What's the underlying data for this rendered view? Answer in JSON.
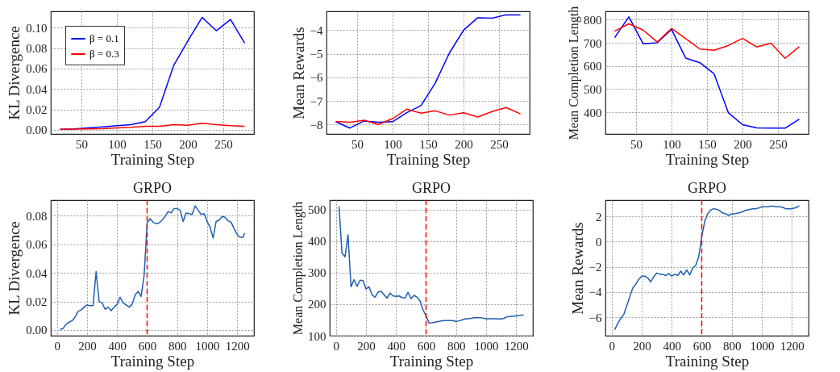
{
  "chart_data": [
    {
      "type": "line",
      "xlabel": "Training Step",
      "ylabel": "KL Divergence",
      "x": [
        20,
        40,
        60,
        80,
        100,
        120,
        140,
        160,
        180,
        200,
        220,
        240,
        260,
        280
      ],
      "xlim": [
        7,
        293
      ],
      "xticks": [
        50,
        100,
        150,
        200,
        250
      ],
      "ylim": [
        -0.004,
        0.116
      ],
      "yticks": [
        {
          "value": 0,
          "label": "0.00"
        },
        {
          "value": 0.02,
          "label": "0.02"
        },
        {
          "value": 0.04,
          "label": "0.04"
        },
        {
          "value": 0.06,
          "label": "0.06"
        },
        {
          "value": 0.08,
          "label": "0.08"
        },
        {
          "value": 0.1,
          "label": "0.10"
        }
      ],
      "grid": true,
      "legend": "top left",
      "series": [
        {
          "name": "β = 0.1",
          "color": "#0000ff",
          "values": [
            0.0005,
            0.001,
            0.002,
            0.003,
            0.004,
            0.005,
            0.008,
            0.022,
            0.063,
            0.087,
            0.11,
            0.097,
            0.108,
            0.085
          ]
        },
        {
          "name": "β = 0.3",
          "color": "#ff0000",
          "values": [
            0.0005,
            0.0008,
            0.001,
            0.0012,
            0.002,
            0.0025,
            0.0035,
            0.0035,
            0.005,
            0.0045,
            0.0065,
            0.005,
            0.004,
            0.0035
          ]
        }
      ]
    },
    {
      "type": "line",
      "xlabel": "Training Step",
      "ylabel": "Mean Rewards",
      "x": [
        20,
        40,
        60,
        80,
        100,
        120,
        140,
        160,
        180,
        200,
        220,
        240,
        260,
        280
      ],
      "xlim": [
        7,
        293
      ],
      "xticks": [
        50,
        100,
        150,
        200,
        250
      ],
      "ylim": [
        -8.4,
        -3.2
      ],
      "yticks": [
        -8,
        -7,
        -6,
        -5,
        -4
      ],
      "grid": true,
      "series": [
        {
          "color": "#0000ff",
          "values": [
            -7.88,
            -8.15,
            -7.85,
            -7.9,
            -7.88,
            -7.5,
            -7.2,
            -6.25,
            -4.97,
            -4.0,
            -3.47,
            -3.49,
            -3.35,
            -3.35
          ]
        },
        {
          "color": "#ff0000",
          "values": [
            -7.87,
            -7.9,
            -7.82,
            -8.0,
            -7.75,
            -7.35,
            -7.52,
            -7.42,
            -7.6,
            -7.5,
            -7.68,
            -7.45,
            -7.28,
            -7.55
          ]
        }
      ]
    },
    {
      "type": "line",
      "xlabel": "Training Step",
      "ylabel": "Mean Completion Length",
      "x": [
        20,
        40,
        60,
        80,
        100,
        120,
        140,
        160,
        180,
        200,
        220,
        240,
        260,
        280
      ],
      "xlim": [
        7,
        293
      ],
      "xticks": [
        50,
        100,
        150,
        200,
        250
      ],
      "ylim": [
        306,
        836
      ],
      "yticks": [
        400,
        500,
        600,
        700,
        800
      ],
      "grid": true,
      "series": [
        {
          "color": "#0000ff",
          "values": [
            722,
            812,
            696,
            700,
            758,
            634,
            614,
            566,
            398,
            346,
            332,
            331,
            331,
            370
          ]
        },
        {
          "color": "#ff0000",
          "values": [
            750,
            782,
            755,
            703,
            762,
            718,
            673,
            668,
            688,
            719,
            682,
            698,
            633,
            683
          ]
        }
      ]
    },
    {
      "type": "line",
      "title": "GRPO",
      "xlabel": "Training Step",
      "ylabel": "KL Divergence",
      "x": [
        20,
        40,
        60,
        80,
        100,
        120,
        140,
        160,
        180,
        200,
        220,
        240,
        260,
        280,
        300,
        320,
        340,
        360,
        380,
        400,
        420,
        440,
        460,
        480,
        500,
        520,
        540,
        560,
        580,
        600,
        620,
        640,
        660,
        680,
        700,
        720,
        740,
        760,
        780,
        800,
        820,
        840,
        860,
        880,
        900,
        920,
        940,
        960,
        980,
        1000,
        1020,
        1040,
        1060,
        1080,
        1100,
        1120,
        1140,
        1160,
        1180,
        1200,
        1220,
        1240,
        1250
      ],
      "xlim": [
        -42,
        1312
      ],
      "xticks": [
        0,
        200,
        400,
        600,
        800,
        1000,
        1200
      ],
      "ylim": [
        -0.004,
        0.091
      ],
      "yticks": [
        {
          "value": 0,
          "label": "0.00"
        },
        {
          "value": 0.02,
          "label": "0.02"
        },
        {
          "value": 0.04,
          "label": "0.04"
        },
        {
          "value": 0.06,
          "label": "0.06"
        },
        {
          "value": 0.08,
          "label": "0.08"
        }
      ],
      "grid": true,
      "ref_lines": [
        {
          "axis": "x",
          "value": 600,
          "color": "#ff0000",
          "line_style": "dashed"
        }
      ],
      "series": [
        {
          "color": "#1f5fb0",
          "values": [
            0.0005,
            0.001,
            0.004,
            0.0055,
            0.0065,
            0.009,
            0.013,
            0.014,
            0.016,
            0.0175,
            0.017,
            0.017,
            0.041,
            0.02,
            0.019,
            0.0145,
            0.016,
            0.0135,
            0.016,
            0.018,
            0.023,
            0.019,
            0.0175,
            0.016,
            0.018,
            0.0245,
            0.027,
            0.0235,
            0.038,
            0.075,
            0.078,
            0.0755,
            0.0745,
            0.075,
            0.077,
            0.0795,
            0.083,
            0.082,
            0.085,
            0.085,
            0.084,
            0.076,
            0.082,
            0.0815,
            0.081,
            0.087,
            0.084,
            0.081,
            0.0815,
            0.076,
            0.072,
            0.0645,
            0.076,
            0.077,
            0.0795,
            0.079,
            0.0765,
            0.0755,
            0.071,
            0.067,
            0.065,
            0.065,
            0.068
          ]
        }
      ]
    },
    {
      "type": "line",
      "title": "GRPO",
      "xlabel": "Training Step",
      "ylabel": "Mean Completion Length",
      "x": [
        20,
        40,
        60,
        80,
        100,
        120,
        140,
        160,
        180,
        200,
        220,
        240,
        260,
        280,
        300,
        320,
        340,
        360,
        380,
        400,
        420,
        440,
        460,
        480,
        500,
        520,
        540,
        560,
        580,
        600,
        620,
        640,
        660,
        680,
        700,
        720,
        740,
        760,
        780,
        800,
        820,
        840,
        860,
        880,
        900,
        920,
        940,
        960,
        980,
        1000,
        1020,
        1040,
        1060,
        1080,
        1100,
        1120,
        1140,
        1160,
        1180,
        1200,
        1220,
        1250
      ],
      "xlim": [
        -42,
        1312
      ],
      "xticks": [
        0,
        200,
        400,
        600,
        800,
        1000,
        1200
      ],
      "ylim": [
        100,
        530
      ],
      "yticks": [
        100,
        200,
        300,
        400,
        500
      ],
      "grid": true,
      "ref_lines": [
        {
          "axis": "x",
          "value": 600,
          "color": "#ff0000",
          "line_style": "dashed"
        }
      ],
      "series": [
        {
          "color": "#1f5fb0",
          "values": [
            510,
            362,
            350,
            420,
            255,
            278,
            256,
            276,
            275,
            248,
            255,
            230,
            222,
            238,
            241,
            230,
            219,
            235,
            226,
            225,
            226,
            221,
            219,
            238,
            217,
            228,
            222,
            210,
            182,
            163,
            140,
            141,
            143,
            145,
            147,
            148,
            148,
            148,
            148,
            145,
            147,
            150,
            153,
            154,
            155,
            157,
            157,
            157,
            156,
            153,
            154,
            154,
            154,
            153,
            153,
            155,
            160,
            161,
            162,
            163,
            164,
            166
          ]
        }
      ]
    },
    {
      "type": "line",
      "title": "GRPO",
      "xlabel": "Training Step",
      "ylabel": "Mean Rewards",
      "x": [
        20,
        40,
        60,
        80,
        100,
        120,
        140,
        160,
        180,
        200,
        220,
        240,
        260,
        280,
        300,
        320,
        340,
        360,
        380,
        400,
        420,
        440,
        460,
        480,
        500,
        520,
        540,
        560,
        580,
        600,
        620,
        640,
        660,
        680,
        700,
        720,
        740,
        760,
        780,
        800,
        820,
        840,
        860,
        880,
        900,
        920,
        940,
        960,
        980,
        1000,
        1020,
        1040,
        1060,
        1080,
        1100,
        1120,
        1140,
        1160,
        1180,
        1200,
        1220,
        1240,
        1250
      ],
      "xlim": [
        -42,
        1312
      ],
      "xticks": [
        0,
        200,
        400,
        600,
        800,
        1000,
        1200
      ],
      "ylim": [
        -7.47,
        3.28
      ],
      "yticks": [
        -6,
        -4,
        -2,
        0,
        2
      ],
      "grid": true,
      "ref_lines": [
        {
          "axis": "x",
          "value": 600,
          "color": "#ff0000",
          "line_style": "dashed"
        }
      ],
      "series": [
        {
          "color": "#1f5fb0",
          "values": [
            -7.0,
            -6.5,
            -6.1,
            -5.8,
            -5.1,
            -4.4,
            -3.7,
            -3.4,
            -3.0,
            -2.75,
            -2.75,
            -2.9,
            -3.2,
            -2.8,
            -2.5,
            -2.6,
            -2.6,
            -2.7,
            -2.55,
            -2.75,
            -2.6,
            -2.7,
            -2.35,
            -2.65,
            -2.25,
            -2.65,
            -2.1,
            -1.9,
            -1.2,
            0.4,
            1.6,
            2.2,
            2.5,
            2.6,
            2.55,
            2.45,
            2.25,
            2.2,
            2.05,
            2.2,
            2.2,
            2.25,
            2.3,
            2.4,
            2.5,
            2.55,
            2.6,
            2.6,
            2.65,
            2.75,
            2.75,
            2.75,
            2.8,
            2.8,
            2.75,
            2.75,
            2.7,
            2.6,
            2.6,
            2.6,
            2.65,
            2.75,
            2.85
          ]
        }
      ]
    }
  ]
}
